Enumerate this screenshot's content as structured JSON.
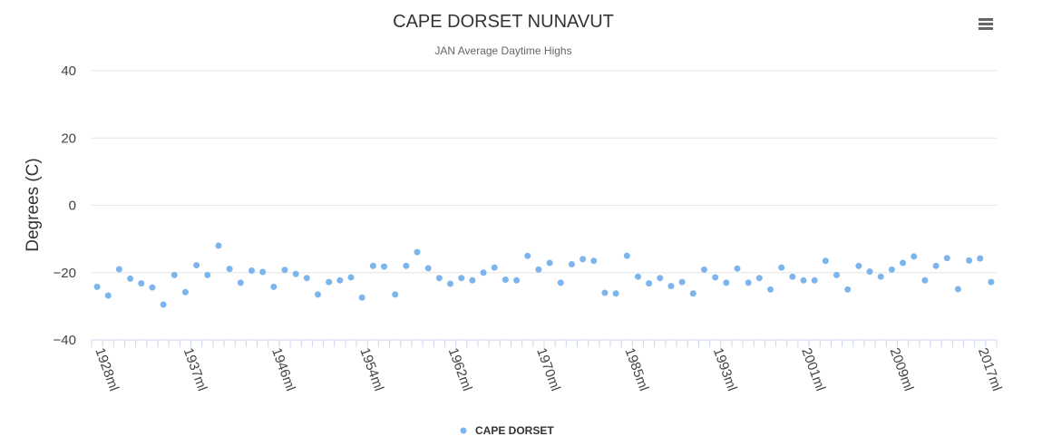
{
  "menu": {
    "icon": "hamburger-menu-icon"
  },
  "chart_data": {
    "type": "scatter",
    "title": "CAPE DORSET NUNAVUT",
    "subtitle": "JAN Average Daytime Highs",
    "ylabel": "Degrees (C)",
    "xlabel": "",
    "ylim": [
      -40,
      40
    ],
    "yticks": [
      40,
      20,
      0,
      -20,
      -40
    ],
    "grid": true,
    "legend_position": "bottom-center",
    "x_tick_labels": [
      "1928ml",
      "1937ml",
      "1946ml",
      "1954ml",
      "1962ml",
      "1970ml",
      "1985ml",
      "1993ml",
      "2001ml",
      "2009ml",
      "2017ml"
    ],
    "x_tick_positions": [
      0,
      8,
      16,
      24,
      32,
      40,
      48,
      56,
      64,
      72,
      80
    ],
    "category_count": 82,
    "series": [
      {
        "name": "CAPE DORSET",
        "color": "#7cb5ec",
        "values": [
          -24.2,
          -26.8,
          -19.0,
          -21.8,
          -23.2,
          -24.4,
          -29.5,
          -20.7,
          -25.8,
          -17.8,
          -20.7,
          -12.0,
          -18.9,
          -23.0,
          -19.4,
          -19.8,
          -24.2,
          -19.2,
          -20.4,
          -21.6,
          -26.5,
          -22.8,
          -22.3,
          -21.4,
          -27.4,
          -18.0,
          -18.2,
          -26.5,
          -18.0,
          -13.9,
          -18.7,
          -21.6,
          -23.3,
          -21.6,
          -22.3,
          -20.0,
          -18.5,
          -22.1,
          -22.3,
          -15.0,
          -19.1,
          -17.1,
          -23.0,
          -17.5,
          -16.0,
          -16.5,
          -26.0,
          -26.2,
          -15.0,
          -21.2,
          -23.2,
          -21.6,
          -24.0,
          -22.8,
          -26.2,
          -19.1,
          -21.4,
          -23.0,
          -18.8,
          -23.0,
          -21.6,
          -25.0,
          -18.5,
          -21.2,
          -22.3,
          -22.3,
          -16.5,
          -20.7,
          -25.0,
          -18.0,
          -19.7,
          -21.2,
          -19.1,
          -17.1,
          -15.2,
          -22.3,
          -18.0,
          -15.7,
          -24.9,
          -16.4,
          -15.8,
          -22.8
        ]
      }
    ]
  }
}
